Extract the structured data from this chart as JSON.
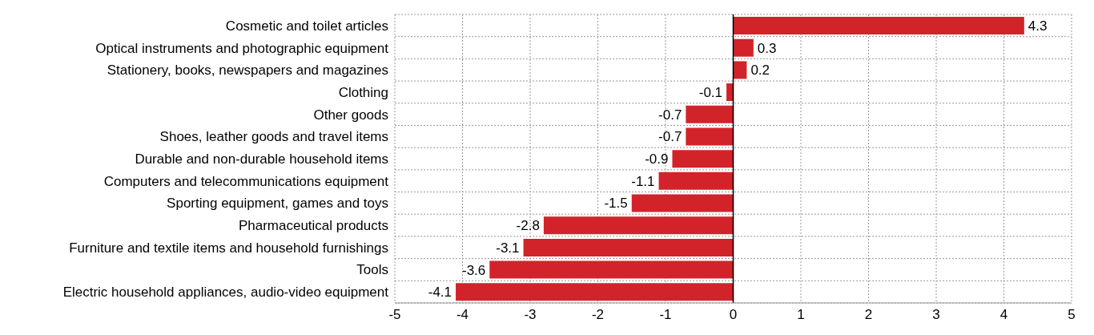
{
  "chart_data": {
    "type": "bar",
    "orientation": "horizontal",
    "categories": [
      "Cosmetic and toilet articles",
      "Optical instruments and photographic equipment",
      "Stationery, books, newspapers and magazines",
      "Clothing",
      "Other goods",
      "Shoes, leather goods and travel items",
      "Durable and non-durable household items",
      "Computers and telecommunications equipment",
      "Sporting equipment, games and toys",
      "Pharmaceutical products",
      "Furniture and textile items and household furnishings",
      "Tools",
      "Electric household appliances, audio-video equipment"
    ],
    "values": [
      4.3,
      0.3,
      0.2,
      -0.1,
      -0.7,
      -0.7,
      -0.9,
      -1.1,
      -1.5,
      -2.8,
      -3.1,
      -3.6,
      -4.1
    ],
    "color": "#d2232a",
    "xlim": [
      -5,
      5
    ],
    "xticks": [
      -5,
      -4,
      -3,
      -2,
      -1,
      0,
      1,
      2,
      3,
      4,
      5
    ],
    "grid": true,
    "data_labels": true
  }
}
